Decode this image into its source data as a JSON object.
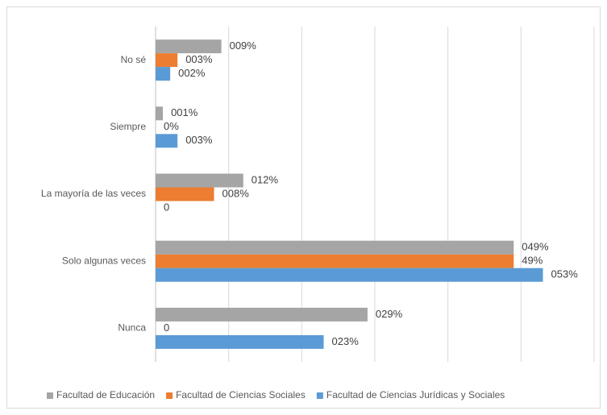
{
  "chart_data": {
    "type": "hbar",
    "categories": [
      "No sé",
      "Siempre",
      "La mayoría de las veces",
      "Solo algunas veces",
      "Nunca"
    ],
    "series": [
      {
        "name": "Facultad de Educación",
        "color": "#a5a5a5",
        "values": [
          9,
          1,
          12,
          49,
          29
        ],
        "value_labels": [
          "009%",
          "001%",
          "012%",
          "049%",
          "029%"
        ]
      },
      {
        "name": "Facultad de Ciencias Sociales",
        "color": "#ed7d31",
        "values": [
          3,
          0,
          8,
          49,
          0
        ],
        "value_labels": [
          "003%",
          "0%",
          "008%",
          "49%",
          "0"
        ]
      },
      {
        "name": "Facultad de Ciencias Jurídicas y Sociales",
        "color": "#5b9bd5",
        "values": [
          2,
          3,
          0,
          53,
          23
        ],
        "value_labels": [
          "002%",
          "003%",
          "0",
          "053%",
          "023%"
        ]
      }
    ],
    "xlim": [
      0,
      60
    ],
    "xticks": [
      0,
      10,
      20,
      30,
      40,
      50,
      60
    ],
    "grid": true,
    "legend": "bottom"
  }
}
